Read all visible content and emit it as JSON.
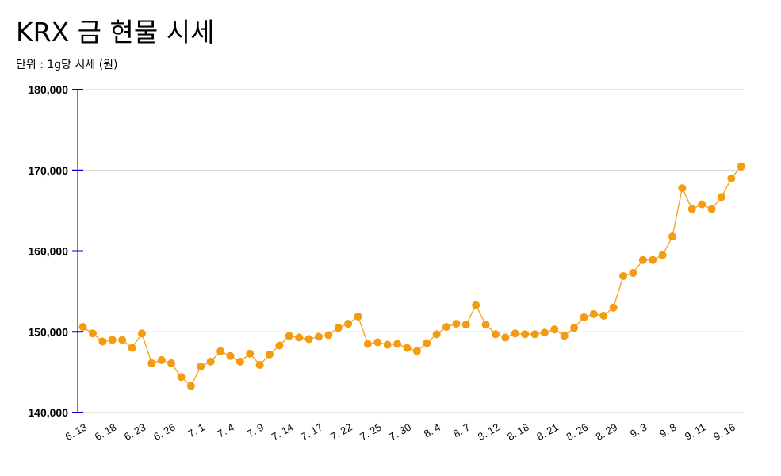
{
  "chart_data": {
    "type": "line",
    "title": "KRX 금 현물 시세",
    "subtitle": "단위 : 1g당 시세 (원)",
    "xlabel": "",
    "ylabel": "",
    "ylim": [
      140000,
      180000
    ],
    "y_ticks": [
      "140,000",
      "150,000",
      "160,000",
      "170,000",
      "180,000"
    ],
    "y_tick_values": [
      140000,
      150000,
      160000,
      170000,
      180000
    ],
    "grid": true,
    "legend": "none",
    "colors": {
      "line": "#f5a623",
      "marker": "#f39c12",
      "grid": "#cccccc",
      "axis": "#000000",
      "tick_mark": "#0000cc"
    },
    "x_tick_labels": [
      "6. 13",
      "6. 18",
      "6. 23",
      "6. 26",
      "7. 1",
      "7. 4",
      "7. 9",
      "7. 14",
      "7. 17",
      "7. 22",
      "7. 25",
      "7. 30",
      "8. 4",
      "8. 7",
      "8. 12",
      "8. 18",
      "8. 21",
      "8. 26",
      "8. 29",
      "9. 3",
      "9. 8",
      "9. 11",
      "9. 16"
    ],
    "series": [
      {
        "values": [
          150600,
          149800,
          148800,
          149000,
          149000,
          148000,
          149800,
          146100,
          146500,
          146100,
          144400,
          143300,
          145700,
          146300,
          147600,
          147000,
          146300,
          147300,
          145900,
          147200,
          148300,
          149500,
          149300,
          149100,
          149400,
          149600,
          150500,
          151000,
          151900,
          148500,
          148700,
          148400,
          148500,
          148000,
          147600,
          148600,
          149700,
          150600,
          151000,
          150900,
          153300,
          150900,
          149700,
          149300,
          149800,
          149700,
          149700,
          149900,
          150300,
          149500,
          150500,
          151800,
          152200,
          152000,
          153000,
          156900,
          157300,
          158900,
          158900,
          159500,
          161800,
          167800,
          165200,
          165800,
          165200,
          166700,
          169000,
          170500
        ]
      }
    ]
  }
}
